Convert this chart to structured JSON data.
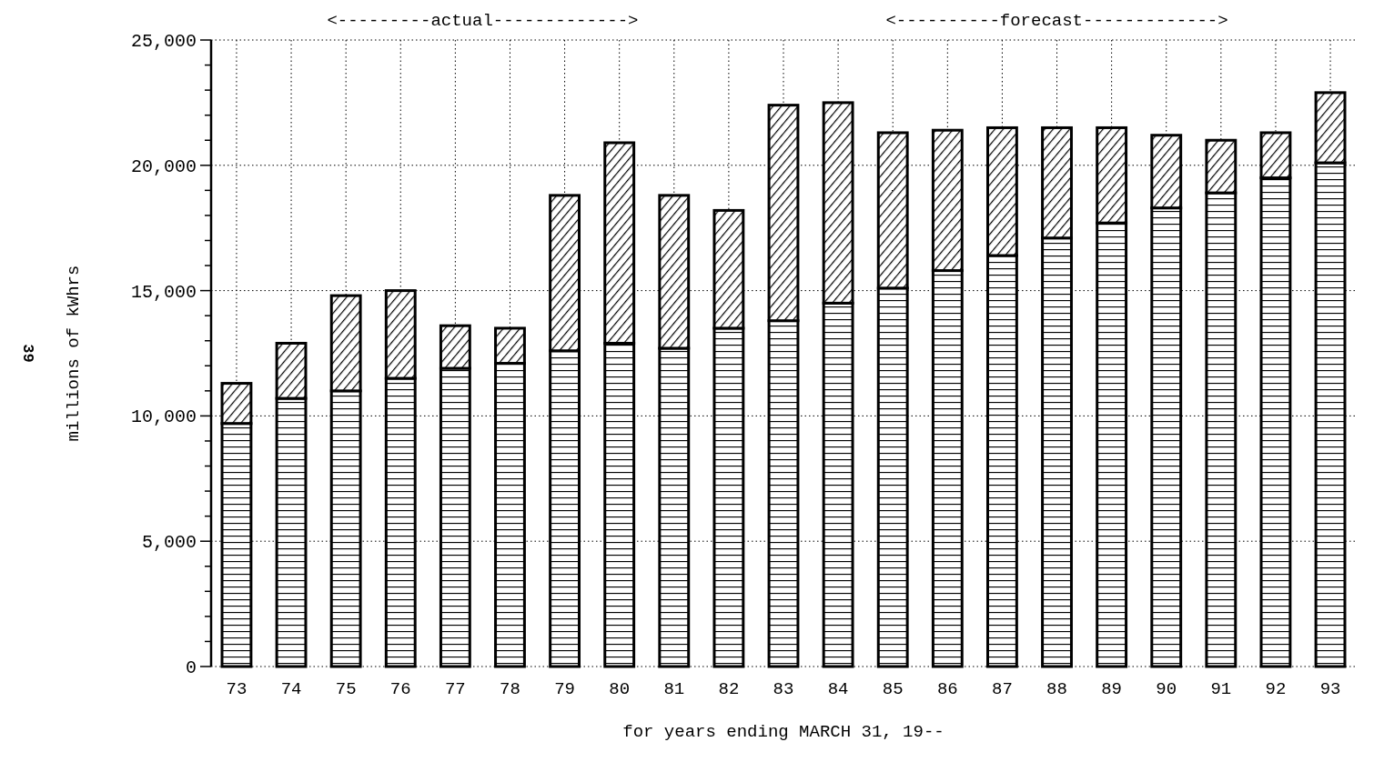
{
  "chart_data": {
    "type": "bar",
    "stacked": true,
    "xlabel": "for years ending MARCH 31, 19--",
    "ylabel": "millions of kWhrs",
    "categories": [
      "73",
      "74",
      "75",
      "76",
      "77",
      "78",
      "79",
      "80",
      "81",
      "82",
      "83",
      "84",
      "85",
      "86",
      "87",
      "88",
      "89",
      "90",
      "91",
      "92",
      "93"
    ],
    "series": [
      {
        "color": "#000000",
        "values": [
          9700,
          10700,
          11000,
          11500,
          11900,
          12100,
          12600,
          12900,
          12700,
          13500,
          13800,
          14500,
          15100,
          15800,
          16400,
          17100,
          17700,
          18300,
          18900,
          19500,
          20100
        ]
      },
      {
        "color": "#000000",
        "values": [
          1600,
          2200,
          3800,
          3500,
          1700,
          1400,
          6200,
          8000,
          6100,
          4700,
          8600,
          8000,
          6200,
          5600,
          5100,
          4400,
          3800,
          2900,
          2100,
          1800,
          2800
        ]
      }
    ],
    "ylim": [
      0,
      25000
    ],
    "yticks": [
      0,
      {
        "value": 1000,
        "label": null
      },
      {
        "value": 2000,
        "label": null
      },
      {
        "value": 3000,
        "label": null
      },
      {
        "value": 4000,
        "label": null
      },
      {
        "value": 5000,
        "label": "5,000"
      },
      {
        "value": 6000,
        "label": null
      },
      {
        "value": 7000,
        "label": null
      },
      {
        "value": 8000,
        "label": null
      },
      {
        "value": 9000,
        "label": null
      },
      {
        "value": 10000,
        "label": "10,000"
      },
      {
        "value": 11000,
        "label": null
      },
      {
        "value": 12000,
        "label": null
      },
      {
        "value": 13000,
        "label": null
      },
      {
        "value": 14000,
        "label": null
      },
      {
        "value": 15000,
        "label": "15,000"
      },
      {
        "value": 16000,
        "label": null
      },
      {
        "value": 17000,
        "label": null
      },
      {
        "value": 18000,
        "label": null
      },
      {
        "value": 19000,
        "label": null
      },
      {
        "value": 20000,
        "label": "20,000"
      },
      {
        "value": 21000,
        "label": null
      },
      {
        "value": 22000,
        "label": null
      },
      {
        "value": 23000,
        "label": null
      },
      {
        "value": 24000,
        "label": null
      },
      {
        "value": 25000,
        "label": "25,000"
      }
    ],
    "grid": true,
    "annotations": [
      "<---------actual------------->",
      "<----------forecast------------->",
      "39"
    ]
  }
}
